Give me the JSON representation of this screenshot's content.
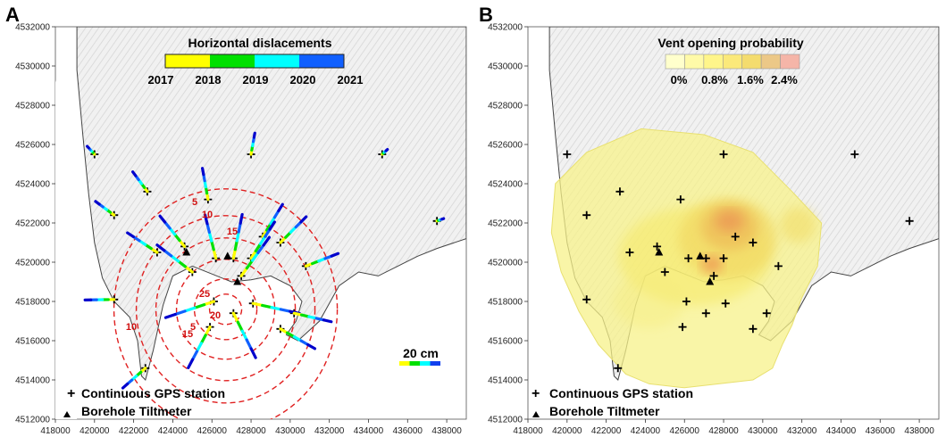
{
  "panels": [
    {
      "label": "A",
      "legend": {
        "title": "Horizontal dislacements",
        "years": [
          "2017",
          "2018",
          "2019",
          "2020",
          "2021"
        ],
        "colors": [
          "#ffff00",
          "#00e000",
          "#00ffff",
          "#1060ff",
          "#0000cc"
        ]
      },
      "scale_label": "20 cm",
      "contour_labels": [
        "5",
        "10",
        "15",
        "20",
        "25",
        "5",
        "10",
        "15"
      ]
    },
    {
      "label": "B",
      "legend": {
        "title": "Vent opening probability",
        "ticks": [
          "0%",
          "0.8%",
          "1.6%",
          "2.4%"
        ],
        "colors": [
          "#ffffcc",
          "#fffaa8",
          "#fff58a",
          "#fbe97a",
          "#f4dc6e",
          "#ecc887",
          "#f5b5a8"
        ]
      }
    }
  ],
  "axes": {
    "x_ticks": [
      "418000",
      "420000",
      "422000",
      "424000",
      "426000",
      "428000",
      "430000",
      "432000",
      "434000",
      "436000",
      "438000"
    ],
    "y_ticks": [
      "4532000",
      "4530000",
      "4528000",
      "4526000",
      "4524000",
      "4522000",
      "4520000",
      "4518000",
      "4516000",
      "4514000",
      "4512000"
    ],
    "x_range": [
      418000,
      439000
    ],
    "y_range": [
      4512000,
      4532000
    ]
  },
  "map_legend": {
    "gps": "Continuous GPS station",
    "tiltmeter": "Borehole Tiltmeter"
  },
  "gps_stations": [
    [
      420000,
      4525500
    ],
    [
      421000,
      4522400
    ],
    [
      422700,
      4523600
    ],
    [
      424600,
      4520800
    ],
    [
      425800,
      4523200
    ],
    [
      428000,
      4525500
    ],
    [
      428600,
      4521300
    ],
    [
      429500,
      4521000
    ],
    [
      425000,
      4519500
    ],
    [
      426200,
      4520200
    ],
    [
      427100,
      4520200
    ],
    [
      428000,
      4520200
    ],
    [
      426100,
      4518000
    ],
    [
      427100,
      4517400
    ],
    [
      428100,
      4517900
    ],
    [
      425900,
      4516700
    ],
    [
      430200,
      4517400
    ],
    [
      429500,
      4516600
    ],
    [
      430800,
      4519800
    ],
    [
      423200,
      4520500
    ],
    [
      421000,
      4518100
    ],
    [
      422600,
      4514600
    ],
    [
      434700,
      4525500
    ],
    [
      437500,
      4522100
    ],
    [
      427500,
      4519300
    ]
  ],
  "tiltmeters": [
    [
      424700,
      4520500
    ],
    [
      426800,
      4520300
    ],
    [
      427300,
      4519000
    ]
  ],
  "vent_probability_levels": [
    0.1,
    0.4,
    0.8,
    1.2,
    1.6,
    2.0,
    2.4
  ]
}
